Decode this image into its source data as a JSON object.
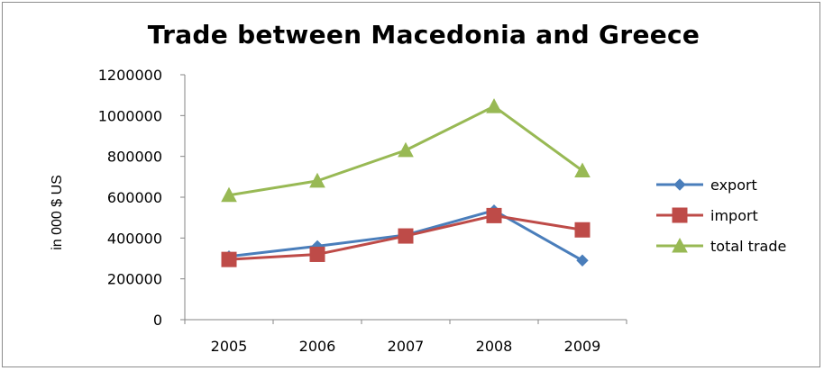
{
  "chart_data": {
    "type": "line",
    "title": "Trade between Macedonia and Greece",
    "xlabel": "",
    "ylabel": "in 000 $ US",
    "categories": [
      "2005",
      "2006",
      "2007",
      "2008",
      "2009"
    ],
    "ylim": [
      0,
      1200000
    ],
    "yticks": [
      "0",
      "200000",
      "400000",
      "600000",
      "800000",
      "1000000",
      "1200000"
    ],
    "grid": false,
    "legend_position": "right",
    "series": [
      {
        "name": "export",
        "color": "#4a7ebb",
        "marker": "diamond",
        "values": [
          310000,
          360000,
          415000,
          535000,
          290000
        ]
      },
      {
        "name": "import",
        "color": "#be4b48",
        "marker": "square",
        "values": [
          295000,
          320000,
          410000,
          510000,
          440000
        ]
      },
      {
        "name": "total trade",
        "color": "#98b954",
        "marker": "triangle",
        "values": [
          610000,
          680000,
          830000,
          1045000,
          730000
        ]
      }
    ]
  }
}
